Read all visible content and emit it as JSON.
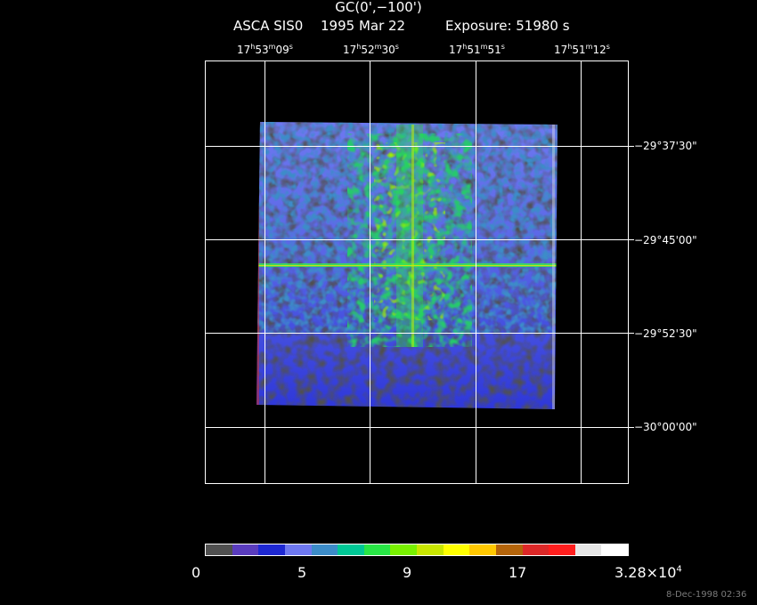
{
  "title": {
    "line1": "GC(0',−100')",
    "instrument": "ASCA SIS0",
    "date": "1995 Mar 22",
    "exposure": "Exposure: 51980 s"
  },
  "ra_labels": [
    {
      "h": "17",
      "m": "53",
      "s": "09"
    },
    {
      "h": "17",
      "m": "52",
      "s": "30"
    },
    {
      "h": "17",
      "m": "51",
      "s": "51"
    },
    {
      "h": "17",
      "m": "51",
      "s": "12"
    }
  ],
  "dec_labels": [
    "−29°37'30\"",
    "−29°45'00\"",
    "−29°52'30\"",
    "−30°00'00\""
  ],
  "colorbar": {
    "colors": [
      "#505050",
      "#5a3cbe",
      "#1e28d2",
      "#6e78f0",
      "#3c8cc8",
      "#00c896",
      "#28e646",
      "#78f000",
      "#c8e600",
      "#ffff00",
      "#ffc800",
      "#b4640a",
      "#dc2828",
      "#ff1e1e",
      "#e6e6e6",
      "#ffffff"
    ],
    "labels": [
      "0",
      "5",
      "9",
      "17",
      "3.28×10"
    ],
    "label_exp": "4"
  },
  "footer": "8-Dec-1998 02:36"
}
